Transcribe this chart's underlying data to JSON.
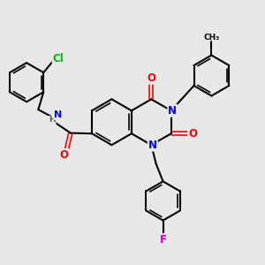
{
  "background_color": "#e8e8e8",
  "bond_color": "#000000",
  "atom_colors": {
    "N": "#0000ff",
    "O": "#ff0000",
    "Cl": "#00bb00",
    "F": "#cc00cc",
    "H": "#555555",
    "C": "#000000"
  },
  "figsize": [
    3.0,
    3.0
  ],
  "dpi": 100
}
